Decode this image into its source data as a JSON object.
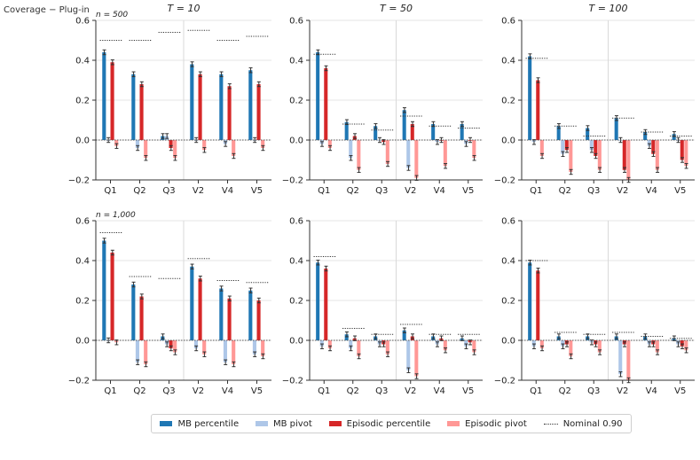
{
  "figure_label": "Coverage − Plug-in",
  "legend": [
    {
      "key": "mb_pct",
      "label": "MB percentile",
      "color": "#1f77b4"
    },
    {
      "key": "mb_piv",
      "label": "MB pivot",
      "color": "#aec7e8"
    },
    {
      "key": "ep_pct",
      "label": "Episodic percentile",
      "color": "#d62728"
    },
    {
      "key": "ep_piv",
      "label": "Episodic pivot",
      "color": "#ff9896"
    }
  ],
  "nominal_label": "Nominal 0.90",
  "chart_data": [
    {
      "type": "bar",
      "row_label": "n = 500",
      "title": "T = 10",
      "categories": [
        "Q1",
        "Q2",
        "Q3",
        "V2",
        "V4",
        "V5"
      ],
      "ylim": [
        -0.2,
        0.6
      ],
      "yticks": [
        "−0.2",
        "0.0",
        "0.2",
        "0.4",
        "0.6"
      ],
      "series": [
        {
          "name": "MB percentile",
          "values": [
            0.44,
            0.33,
            0.02,
            0.38,
            0.33,
            0.35
          ]
        },
        {
          "name": "MB pivot",
          "values": [
            0.0,
            -0.04,
            0.02,
            0.0,
            -0.02,
            0.0
          ]
        },
        {
          "name": "Episodic percentile",
          "values": [
            0.39,
            0.28,
            -0.04,
            0.33,
            0.27,
            0.28
          ]
        },
        {
          "name": "Episodic pivot",
          "values": [
            -0.03,
            -0.09,
            -0.09,
            -0.05,
            -0.08,
            -0.04
          ]
        }
      ],
      "nominal": [
        0.5,
        0.5,
        0.54,
        0.55,
        0.5,
        0.52
      ]
    },
    {
      "type": "bar",
      "row_label": "",
      "title": "T = 50",
      "categories": [
        "Q1",
        "Q2",
        "Q3",
        "V2",
        "V4",
        "V5"
      ],
      "ylim": [
        -0.2,
        0.6
      ],
      "yticks": [
        "−0.2",
        "0.0",
        "0.2",
        "0.4",
        "0.6"
      ],
      "series": [
        {
          "name": "MB percentile",
          "values": [
            0.44,
            0.09,
            0.07,
            0.15,
            0.08,
            0.08
          ]
        },
        {
          "name": "MB pivot",
          "values": [
            -0.02,
            -0.09,
            0.0,
            -0.14,
            -0.01,
            -0.02
          ]
        },
        {
          "name": "Episodic percentile",
          "values": [
            0.36,
            0.02,
            -0.01,
            0.08,
            0.0,
            0.0
          ]
        },
        {
          "name": "Episodic pivot",
          "values": [
            -0.04,
            -0.15,
            -0.12,
            -0.19,
            -0.13,
            -0.09
          ]
        }
      ],
      "nominal": [
        0.43,
        0.08,
        0.05,
        0.12,
        0.07,
        0.06
      ]
    },
    {
      "type": "bar",
      "row_label": "",
      "title": "T = 100",
      "categories": [
        "Q1",
        "Q2",
        "Q3",
        "V2",
        "V4",
        "V5"
      ],
      "ylim": [
        -0.2,
        0.6
      ],
      "yticks": [
        "−0.2",
        "0.0",
        "0.2",
        "0.4",
        "0.6"
      ],
      "series": [
        {
          "name": "MB percentile",
          "values": [
            0.42,
            0.07,
            0.06,
            0.11,
            0.04,
            0.03
          ]
        },
        {
          "name": "MB pivot",
          "values": [
            -0.01,
            -0.07,
            -0.05,
            0.0,
            -0.03,
            0.0
          ]
        },
        {
          "name": "Episodic percentile",
          "values": [
            0.3,
            -0.05,
            -0.08,
            -0.15,
            -0.07,
            -0.1
          ]
        },
        {
          "name": "Episodic pivot",
          "values": [
            -0.08,
            -0.16,
            -0.15,
            -0.2,
            -0.15,
            -0.13
          ]
        }
      ],
      "nominal": [
        0.41,
        0.07,
        0.02,
        0.11,
        0.04,
        0.02
      ]
    },
    {
      "type": "bar",
      "row_label": "n = 1,000",
      "title": "",
      "categories": [
        "Q1",
        "Q2",
        "Q3",
        "V2",
        "V4",
        "V5"
      ],
      "ylim": [
        -0.2,
        0.6
      ],
      "yticks": [
        "−0.2",
        "0.0",
        "0.2",
        "0.4",
        "0.6"
      ],
      "series": [
        {
          "name": "MB percentile",
          "values": [
            0.5,
            0.28,
            0.02,
            0.37,
            0.26,
            0.25
          ]
        },
        {
          "name": "MB pivot",
          "values": [
            0.0,
            -0.11,
            -0.02,
            -0.04,
            -0.11,
            -0.07
          ]
        },
        {
          "name": "Episodic percentile",
          "values": [
            0.44,
            0.22,
            -0.04,
            0.31,
            0.21,
            0.2
          ]
        },
        {
          "name": "Episodic pivot",
          "values": [
            -0.01,
            -0.12,
            -0.06,
            -0.07,
            -0.12,
            -0.08
          ]
        }
      ],
      "nominal": [
        0.54,
        0.32,
        0.31,
        0.41,
        0.3,
        0.29
      ]
    },
    {
      "type": "bar",
      "row_label": "",
      "title": "",
      "categories": [
        "Q1",
        "Q2",
        "Q3",
        "V2",
        "V4",
        "V5"
      ],
      "ylim": [
        -0.2,
        0.6
      ],
      "yticks": [
        "−0.2",
        "0.0",
        "0.2",
        "0.4",
        "0.6"
      ],
      "series": [
        {
          "name": "MB percentile",
          "values": [
            0.39,
            0.03,
            0.02,
            0.05,
            0.02,
            0.01
          ]
        },
        {
          "name": "MB pivot",
          "values": [
            -0.03,
            -0.04,
            -0.02,
            -0.15,
            -0.02,
            -0.03
          ]
        },
        {
          "name": "Episodic percentile",
          "values": [
            0.36,
            0.01,
            -0.02,
            0.02,
            0.01,
            -0.01
          ]
        },
        {
          "name": "Episodic pivot",
          "values": [
            -0.04,
            -0.08,
            -0.07,
            -0.18,
            -0.05,
            -0.06
          ]
        }
      ],
      "nominal": [
        0.42,
        0.06,
        0.03,
        0.08,
        0.03,
        0.03
      ]
    },
    {
      "type": "bar",
      "row_label": "",
      "title": "",
      "categories": [
        "Q1",
        "Q2",
        "Q3",
        "V2",
        "V4",
        "V5"
      ],
      "ylim": [
        -0.2,
        0.6
      ],
      "yticks": [
        "−0.2",
        "0.0",
        "0.2",
        "0.4",
        "0.6"
      ],
      "series": [
        {
          "name": "MB percentile",
          "values": [
            0.39,
            0.02,
            0.02,
            0.02,
            0.02,
            0.01
          ]
        },
        {
          "name": "MB pivot",
          "values": [
            -0.03,
            -0.03,
            -0.01,
            -0.17,
            -0.02,
            -0.02
          ]
        },
        {
          "name": "Episodic percentile",
          "values": [
            0.35,
            -0.02,
            -0.02,
            -0.02,
            -0.02,
            -0.03
          ]
        },
        {
          "name": "Episodic pivot",
          "values": [
            -0.04,
            -0.08,
            -0.06,
            -0.2,
            -0.06,
            -0.05
          ]
        }
      ],
      "nominal": [
        0.4,
        0.04,
        0.03,
        0.04,
        0.02,
        0.01
      ]
    }
  ]
}
